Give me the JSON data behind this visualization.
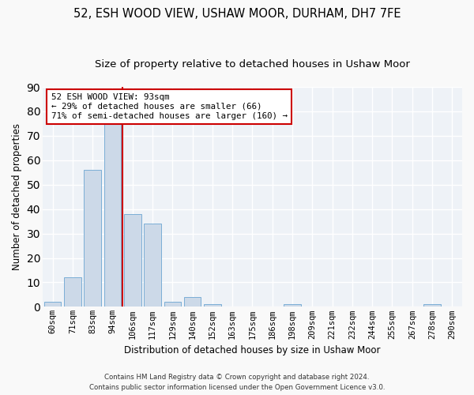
{
  "title_line1": "52, ESH WOOD VIEW, USHAW MOOR, DURHAM, DH7 7FE",
  "title_line2": "Size of property relative to detached houses in Ushaw Moor",
  "xlabel": "Distribution of detached houses by size in Ushaw Moor",
  "ylabel": "Number of detached properties",
  "bar_color": "#ccd9e8",
  "bar_edge_color": "#7aaed6",
  "categories": [
    "60sqm",
    "71sqm",
    "83sqm",
    "94sqm",
    "106sqm",
    "117sqm",
    "129sqm",
    "140sqm",
    "152sqm",
    "163sqm",
    "175sqm",
    "186sqm",
    "198sqm",
    "209sqm",
    "221sqm",
    "232sqm",
    "244sqm",
    "255sqm",
    "267sqm",
    "278sqm",
    "290sqm"
  ],
  "values": [
    2,
    12,
    56,
    76,
    38,
    34,
    2,
    4,
    1,
    0,
    0,
    0,
    1,
    0,
    0,
    0,
    0,
    0,
    0,
    1,
    0
  ],
  "ylim": [
    0,
    90
  ],
  "yticks": [
    0,
    10,
    20,
    30,
    40,
    50,
    60,
    70,
    80,
    90
  ],
  "vline_x": 3.5,
  "vline_color": "#cc0000",
  "annotation_text": "52 ESH WOOD VIEW: 93sqm\n← 29% of detached houses are smaller (66)\n71% of semi-detached houses are larger (160) →",
  "annotation_box_facecolor": "#ffffff",
  "annotation_box_edgecolor": "#cc0000",
  "footer_line1": "Contains HM Land Registry data © Crown copyright and database right 2024.",
  "footer_line2": "Contains public sector information licensed under the Open Government Licence v3.0.",
  "fig_facecolor": "#f9f9f9",
  "ax_facecolor": "#eef2f7",
  "grid_color": "#ffffff",
  "title_fontsize": 10.5,
  "subtitle_fontsize": 9.5,
  "axis_label_fontsize": 8.5,
  "tick_fontsize": 7.5,
  "bar_width": 0.85
}
